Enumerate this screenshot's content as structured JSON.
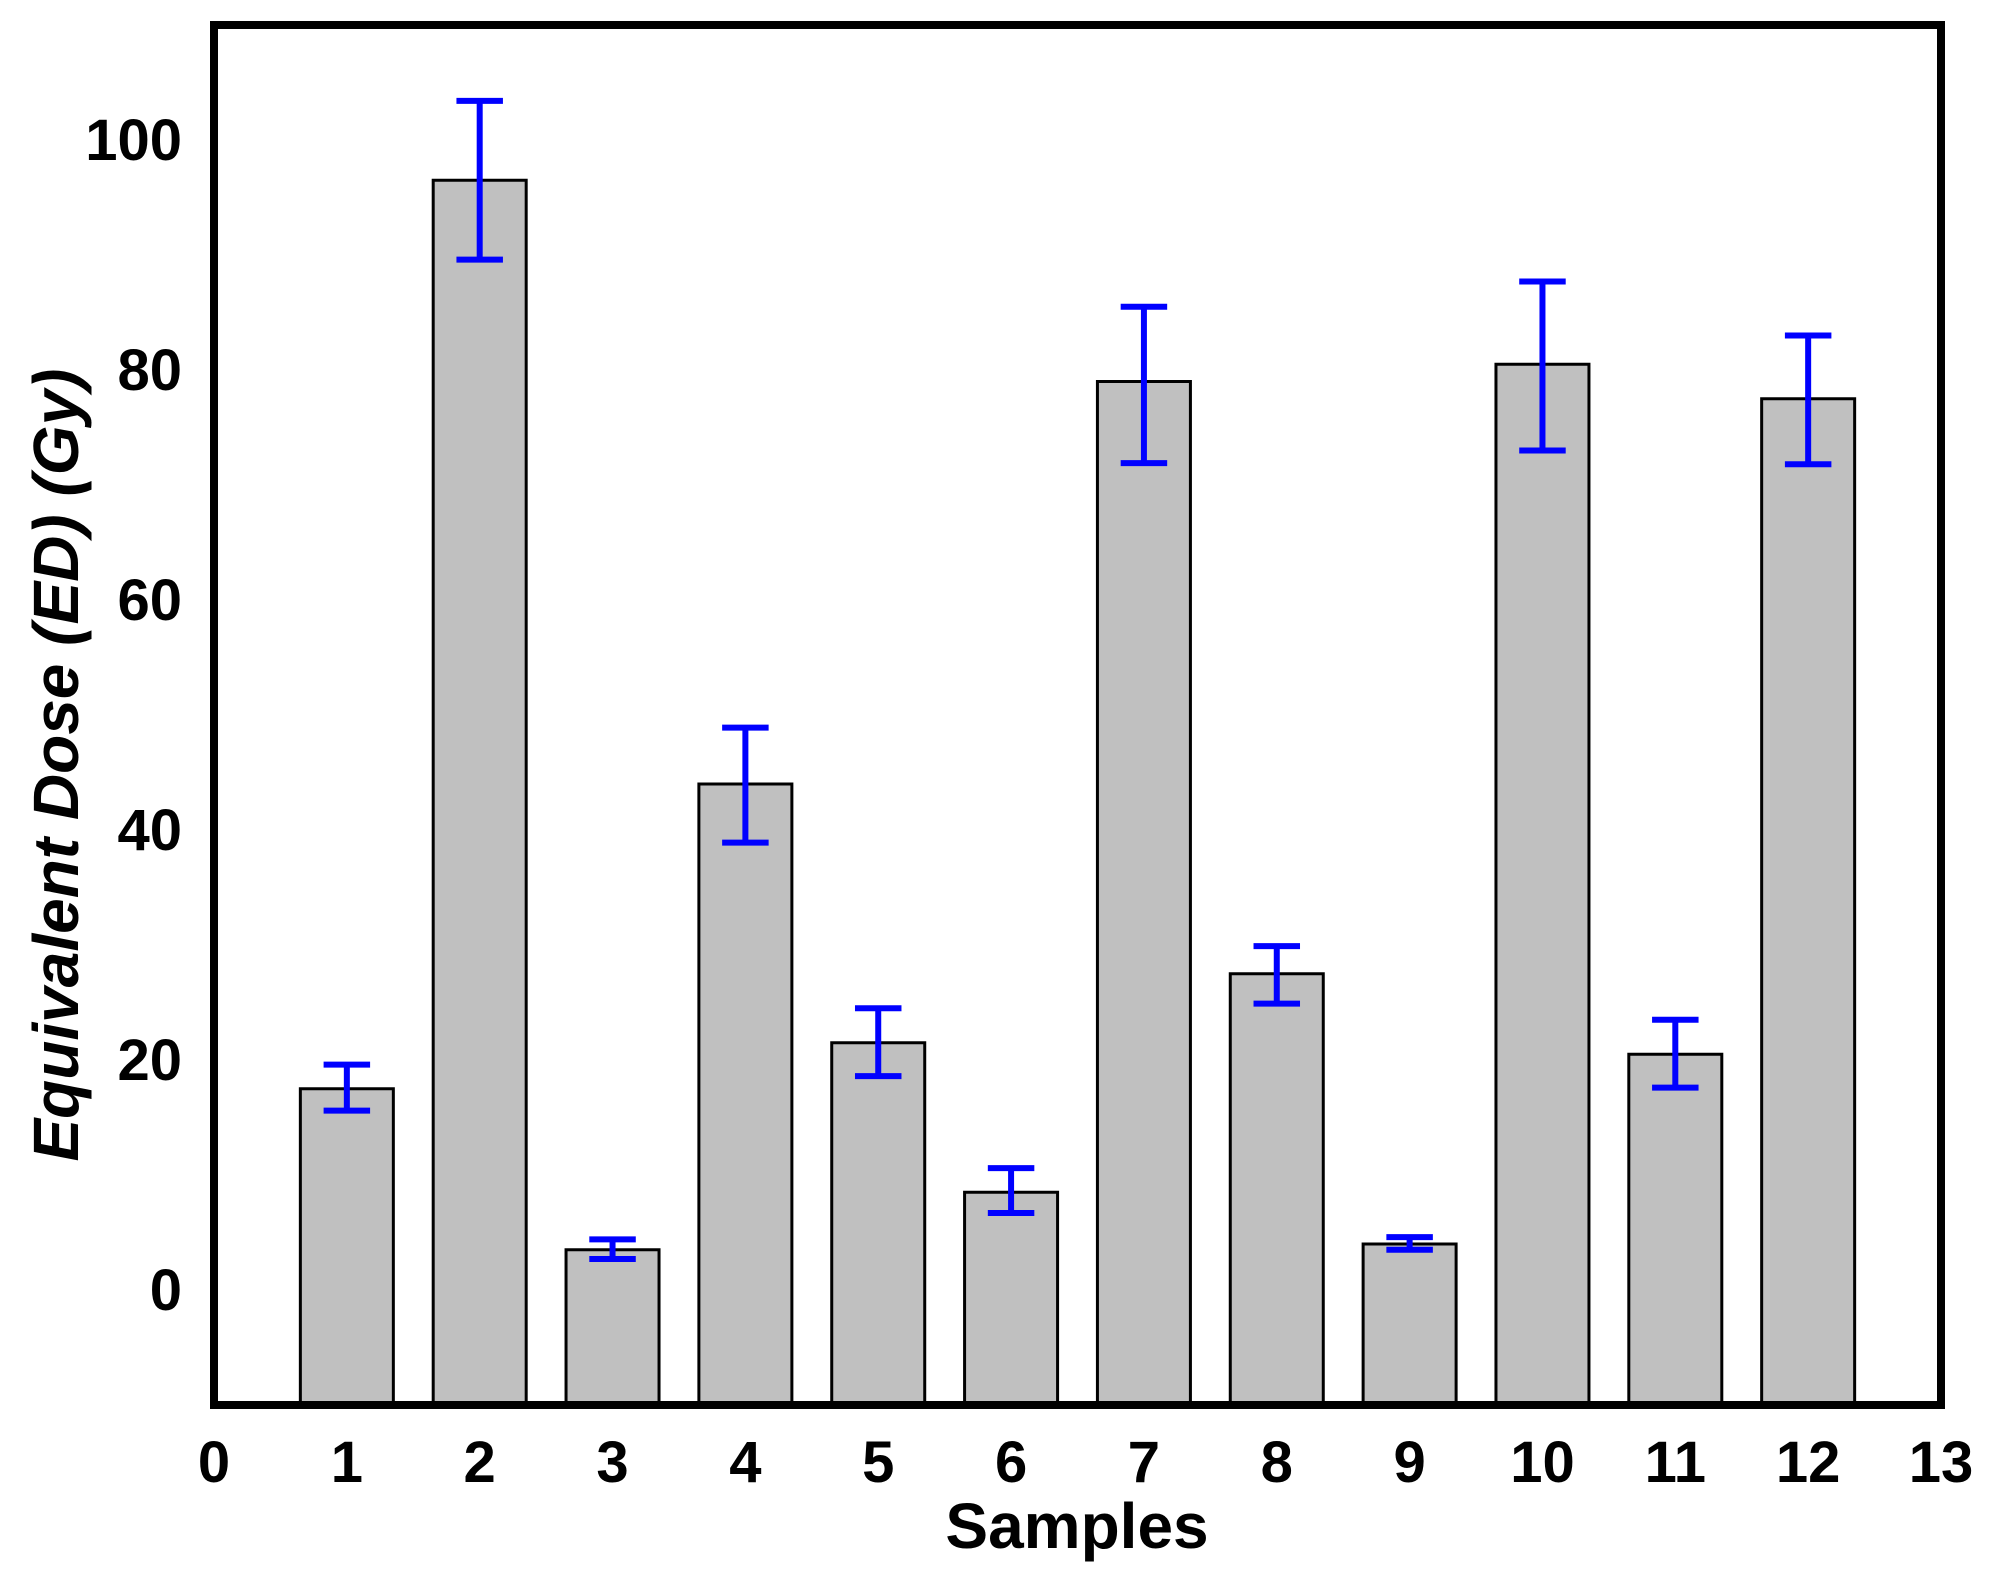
{
  "chart_data": {
    "type": "bar",
    "title": "",
    "xlabel": "Samples",
    "ylabel": "Equivalent Dose (ED) (Gy)",
    "xlim": [
      0,
      13
    ],
    "ylim": [
      -10,
      110
    ],
    "x_ticks": [
      0,
      1,
      2,
      3,
      4,
      5,
      6,
      7,
      8,
      9,
      10,
      11,
      12,
      13
    ],
    "y_ticks": [
      0,
      20,
      40,
      60,
      80,
      100
    ],
    "categories": [
      1,
      2,
      3,
      4,
      5,
      6,
      7,
      8,
      9,
      10,
      11,
      12
    ],
    "values": [
      17.5,
      96.5,
      3.5,
      44.0,
      21.5,
      8.5,
      79.0,
      27.5,
      4.0,
      80.5,
      20.5,
      77.5
    ],
    "error_low": [
      15.6,
      89.6,
      2.7,
      38.9,
      18.6,
      6.7,
      71.9,
      24.9,
      3.5,
      73.0,
      17.6,
      71.8
    ],
    "error_high": [
      19.6,
      103.4,
      4.4,
      48.9,
      24.5,
      10.6,
      85.5,
      29.9,
      4.6,
      87.7,
      23.5,
      83.0
    ],
    "bar_color": "#c0c0c0",
    "error_color": "#0000ff",
    "grid": false,
    "legend": "none"
  }
}
